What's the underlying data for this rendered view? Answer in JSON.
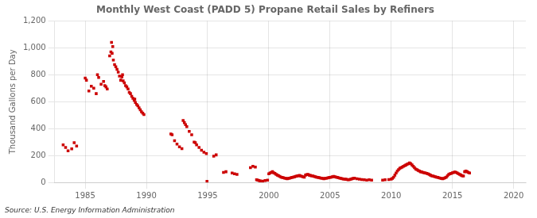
{
  "chart_data": {
    "type": "scatter",
    "title": "Monthly West Coast (PADD 5) Propane Retail Sales by Refiners",
    "ylabel": "Thousand Gallons per Day",
    "source": "Source: U.S. Energy Information Administration",
    "color": "#cc0000",
    "marker": "square",
    "grid": true,
    "xlim": [
      1982.5,
      2021
    ],
    "ylim": [
      0,
      1200
    ],
    "xticks": [
      1985,
      1990,
      1995,
      2000,
      2005,
      2010,
      2015,
      2020
    ],
    "yticks": [
      0,
      200,
      400,
      600,
      800,
      {
        "value": 1000,
        "label": "1,000"
      },
      {
        "value": 1200,
        "label": "1,200"
      }
    ],
    "data": [
      [
        1983.2,
        280
      ],
      [
        1983.4,
        260
      ],
      [
        1983.6,
        235
      ],
      [
        1983.9,
        250
      ],
      [
        1984.1,
        295
      ],
      [
        1984.3,
        270
      ],
      [
        1985.0,
        775
      ],
      [
        1985.1,
        760
      ],
      [
        1985.3,
        680
      ],
      [
        1985.5,
        715
      ],
      [
        1985.7,
        700
      ],
      [
        1985.9,
        660
      ],
      [
        1986.0,
        800
      ],
      [
        1986.1,
        780
      ],
      [
        1986.3,
        730
      ],
      [
        1986.5,
        750
      ],
      [
        1986.6,
        720
      ],
      [
        1986.7,
        710
      ],
      [
        1986.8,
        695
      ],
      [
        1987.0,
        940
      ],
      [
        1987.1,
        970
      ],
      [
        1987.2,
        960
      ],
      [
        1987.3,
        910
      ],
      [
        1987.4,
        875
      ],
      [
        1987.5,
        860
      ],
      [
        1987.6,
        840
      ],
      [
        1987.7,
        820
      ],
      [
        1987.8,
        790
      ],
      [
        1987.9,
        760
      ],
      [
        1988.0,
        785
      ],
      [
        1988.05,
        800
      ],
      [
        1988.1,
        755
      ],
      [
        1988.2,
        740
      ],
      [
        1988.3,
        720
      ],
      [
        1988.4,
        710
      ],
      [
        1988.5,
        695
      ],
      [
        1988.6,
        670
      ],
      [
        1988.7,
        660
      ],
      [
        1988.8,
        640
      ],
      [
        1988.9,
        625
      ],
      [
        1989.0,
        610
      ],
      [
        1989.05,
        620
      ],
      [
        1989.1,
        595
      ],
      [
        1989.2,
        580
      ],
      [
        1989.3,
        570
      ],
      [
        1989.4,
        555
      ],
      [
        1989.5,
        540
      ],
      [
        1989.6,
        525
      ],
      [
        1989.7,
        515
      ],
      [
        1989.8,
        505
      ],
      [
        1987.15,
        1040
      ],
      [
        1987.25,
        1010
      ],
      [
        1992.0,
        360
      ],
      [
        1992.1,
        355
      ],
      [
        1992.3,
        310
      ],
      [
        1992.5,
        285
      ],
      [
        1992.7,
        265
      ],
      [
        1992.9,
        252
      ],
      [
        1993.0,
        460
      ],
      [
        1993.1,
        445
      ],
      [
        1993.2,
        430
      ],
      [
        1993.3,
        415
      ],
      [
        1993.5,
        380
      ],
      [
        1993.7,
        355
      ],
      [
        1993.9,
        300
      ],
      [
        1994.0,
        295
      ],
      [
        1994.1,
        280
      ],
      [
        1994.3,
        260
      ],
      [
        1994.5,
        240
      ],
      [
        1994.7,
        225
      ],
      [
        1994.9,
        215
      ],
      [
        1994.95,
        8
      ],
      [
        1995.5,
        195
      ],
      [
        1995.7,
        205
      ],
      [
        1996.3,
        75
      ],
      [
        1996.5,
        80
      ],
      [
        1997.0,
        70
      ],
      [
        1997.2,
        65
      ],
      [
        1997.4,
        60
      ],
      [
        1998.5,
        110
      ],
      [
        1998.7,
        120
      ],
      [
        1998.9,
        115
      ],
      [
        1999.0,
        20
      ],
      [
        1999.1,
        18
      ],
      [
        1999.2,
        15
      ],
      [
        1999.3,
        12
      ],
      [
        1999.5,
        10
      ],
      [
        1999.7,
        14
      ],
      [
        1999.9,
        18
      ],
      [
        2000.0,
        65
      ],
      [
        2000.1,
        70
      ],
      [
        2000.2,
        75
      ],
      [
        2000.3,
        80
      ],
      [
        2000.4,
        72
      ],
      [
        2000.5,
        68
      ],
      [
        2000.6,
        60
      ],
      [
        2000.7,
        55
      ],
      [
        2000.8,
        50
      ],
      [
        2000.9,
        45
      ],
      [
        2001.0,
        40
      ],
      [
        2001.1,
        38
      ],
      [
        2001.2,
        35
      ],
      [
        2001.3,
        32
      ],
      [
        2001.4,
        30
      ],
      [
        2001.5,
        28
      ],
      [
        2001.6,
        30
      ],
      [
        2001.7,
        32
      ],
      [
        2001.8,
        35
      ],
      [
        2001.9,
        38
      ],
      [
        2002.0,
        40
      ],
      [
        2002.1,
        42
      ],
      [
        2002.2,
        45
      ],
      [
        2002.3,
        48
      ],
      [
        2002.4,
        50
      ],
      [
        2002.5,
        52
      ],
      [
        2002.6,
        48
      ],
      [
        2002.7,
        45
      ],
      [
        2002.8,
        42
      ],
      [
        2002.9,
        40
      ],
      [
        2003.0,
        55
      ],
      [
        2003.1,
        58
      ],
      [
        2003.2,
        60
      ],
      [
        2003.3,
        55
      ],
      [
        2003.4,
        52
      ],
      [
        2003.5,
        50
      ],
      [
        2003.6,
        48
      ],
      [
        2003.7,
        45
      ],
      [
        2003.8,
        42
      ],
      [
        2003.9,
        40
      ],
      [
        2004.0,
        38
      ],
      [
        2004.1,
        36
      ],
      [
        2004.2,
        34
      ],
      [
        2004.3,
        32
      ],
      [
        2004.4,
        30
      ],
      [
        2004.5,
        28
      ],
      [
        2004.6,
        30
      ],
      [
        2004.7,
        32
      ],
      [
        2004.8,
        34
      ],
      [
        2004.9,
        36
      ],
      [
        2005.0,
        38
      ],
      [
        2005.1,
        40
      ],
      [
        2005.2,
        42
      ],
      [
        2005.3,
        45
      ],
      [
        2005.4,
        42
      ],
      [
        2005.5,
        40
      ],
      [
        2005.6,
        38
      ],
      [
        2005.7,
        35
      ],
      [
        2005.8,
        32
      ],
      [
        2005.9,
        30
      ],
      [
        2006.0,
        28
      ],
      [
        2006.1,
        26
      ],
      [
        2006.2,
        25
      ],
      [
        2006.3,
        24
      ],
      [
        2006.4,
        22
      ],
      [
        2006.5,
        20
      ],
      [
        2006.6,
        22
      ],
      [
        2006.7,
        25
      ],
      [
        2006.8,
        28
      ],
      [
        2006.9,
        30
      ],
      [
        2007.0,
        32
      ],
      [
        2007.2,
        28
      ],
      [
        2007.4,
        25
      ],
      [
        2007.6,
        22
      ],
      [
        2007.8,
        20
      ],
      [
        2008.0,
        18
      ],
      [
        2008.2,
        20
      ],
      [
        2008.4,
        18
      ],
      [
        2009.3,
        18
      ],
      [
        2009.5,
        20
      ],
      [
        2009.8,
        22
      ],
      [
        2010.0,
        25
      ],
      [
        2010.1,
        30
      ],
      [
        2010.2,
        40
      ],
      [
        2010.3,
        55
      ],
      [
        2010.4,
        70
      ],
      [
        2010.5,
        85
      ],
      [
        2010.6,
        95
      ],
      [
        2010.7,
        105
      ],
      [
        2010.8,
        110
      ],
      [
        2010.9,
        115
      ],
      [
        2011.0,
        120
      ],
      [
        2011.1,
        125
      ],
      [
        2011.2,
        130
      ],
      [
        2011.3,
        135
      ],
      [
        2011.4,
        140
      ],
      [
        2011.5,
        145
      ],
      [
        2011.6,
        140
      ],
      [
        2011.7,
        130
      ],
      [
        2011.8,
        120
      ],
      [
        2011.9,
        110
      ],
      [
        2012.0,
        100
      ],
      [
        2012.1,
        95
      ],
      [
        2012.2,
        90
      ],
      [
        2012.3,
        85
      ],
      [
        2012.4,
        80
      ],
      [
        2012.5,
        78
      ],
      [
        2012.6,
        75
      ],
      [
        2012.7,
        72
      ],
      [
        2012.8,
        70
      ],
      [
        2012.9,
        68
      ],
      [
        2013.0,
        65
      ],
      [
        2013.1,
        60
      ],
      [
        2013.2,
        55
      ],
      [
        2013.3,
        50
      ],
      [
        2013.4,
        48
      ],
      [
        2013.5,
        45
      ],
      [
        2013.6,
        42
      ],
      [
        2013.7,
        40
      ],
      [
        2013.8,
        38
      ],
      [
        2013.9,
        35
      ],
      [
        2014.0,
        32
      ],
      [
        2014.1,
        30
      ],
      [
        2014.2,
        28
      ],
      [
        2014.3,
        30
      ],
      [
        2014.4,
        35
      ],
      [
        2014.5,
        40
      ],
      [
        2014.6,
        50
      ],
      [
        2014.7,
        60
      ],
      [
        2014.8,
        65
      ],
      [
        2014.9,
        68
      ],
      [
        2015.0,
        72
      ],
      [
        2015.1,
        75
      ],
      [
        2015.2,
        78
      ],
      [
        2015.3,
        75
      ],
      [
        2015.4,
        70
      ],
      [
        2015.5,
        65
      ],
      [
        2015.6,
        60
      ],
      [
        2015.7,
        55
      ],
      [
        2015.8,
        50
      ],
      [
        2015.9,
        48
      ],
      [
        2016.0,
        80
      ],
      [
        2016.1,
        85
      ],
      [
        2016.2,
        80
      ],
      [
        2016.3,
        75
      ],
      [
        2016.4,
        70
      ]
    ]
  }
}
